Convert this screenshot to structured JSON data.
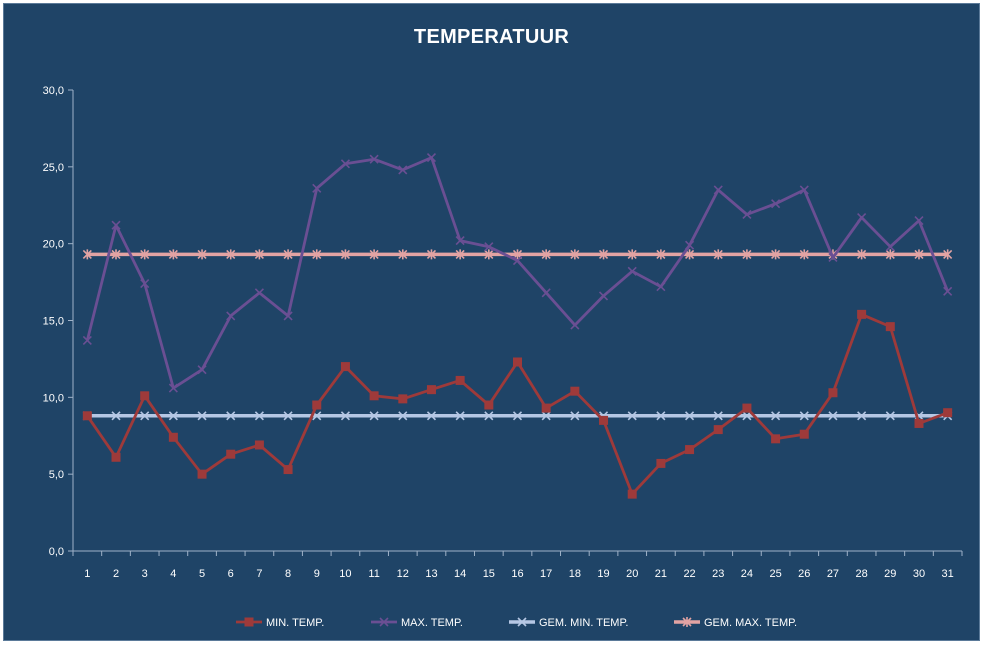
{
  "chart_data": {
    "type": "line",
    "title": "TEMPERATUUR",
    "xlabel": "",
    "ylabel": "",
    "ylim": [
      0,
      30
    ],
    "y_tick_labels": [
      "0,0",
      "5,0",
      "10,0",
      "15,0",
      "20,0",
      "25,0",
      "30,0"
    ],
    "y_ticks": [
      0,
      5,
      10,
      15,
      20,
      25,
      30
    ],
    "x": [
      1,
      2,
      3,
      4,
      5,
      6,
      7,
      8,
      9,
      10,
      11,
      12,
      13,
      14,
      15,
      16,
      17,
      18,
      19,
      20,
      21,
      22,
      23,
      24,
      25,
      26,
      27,
      28,
      29,
      30,
      31
    ],
    "grid": false,
    "legend_position": "bottom",
    "series": [
      {
        "name": "MIN. TEMP.",
        "color": "#9e3a3a",
        "marker": "square",
        "values": [
          8.8,
          6.1,
          10.1,
          7.4,
          5.0,
          6.3,
          6.9,
          5.3,
          9.5,
          12.0,
          10.1,
          9.9,
          10.5,
          11.1,
          9.5,
          12.3,
          9.3,
          10.4,
          8.5,
          3.7,
          5.7,
          6.6,
          7.9,
          9.3,
          7.3,
          7.6,
          10.3,
          15.4,
          14.6,
          8.3,
          9.0
        ]
      },
      {
        "name": "MAX. TEMP.",
        "color": "#6a4f93",
        "marker": "x",
        "values": [
          13.7,
          21.2,
          17.4,
          10.6,
          11.8,
          15.3,
          16.8,
          15.3,
          23.6,
          25.2,
          25.5,
          24.8,
          25.6,
          20.2,
          19.8,
          18.9,
          16.8,
          14.7,
          16.6,
          18.2,
          17.2,
          19.9,
          23.5,
          21.9,
          22.6,
          23.5,
          19.1,
          21.7,
          19.8,
          21.5,
          16.9
        ]
      },
      {
        "name": "GEM. MIN. TEMP.",
        "color": "#b5c7e4",
        "marker": "x",
        "values": [
          8.8,
          8.8,
          8.8,
          8.8,
          8.8,
          8.8,
          8.8,
          8.8,
          8.8,
          8.8,
          8.8,
          8.8,
          8.8,
          8.8,
          8.8,
          8.8,
          8.8,
          8.8,
          8.8,
          8.8,
          8.8,
          8.8,
          8.8,
          8.8,
          8.8,
          8.8,
          8.8,
          8.8,
          8.8,
          8.8,
          8.8
        ]
      },
      {
        "name": "GEM. MAX. TEMP.",
        "color": "#e2a3a3",
        "marker": "asterisk",
        "values": [
          19.3,
          19.3,
          19.3,
          19.3,
          19.3,
          19.3,
          19.3,
          19.3,
          19.3,
          19.3,
          19.3,
          19.3,
          19.3,
          19.3,
          19.3,
          19.3,
          19.3,
          19.3,
          19.3,
          19.3,
          19.3,
          19.3,
          19.3,
          19.3,
          19.3,
          19.3,
          19.3,
          19.3,
          19.3,
          19.3,
          19.3
        ]
      }
    ]
  }
}
